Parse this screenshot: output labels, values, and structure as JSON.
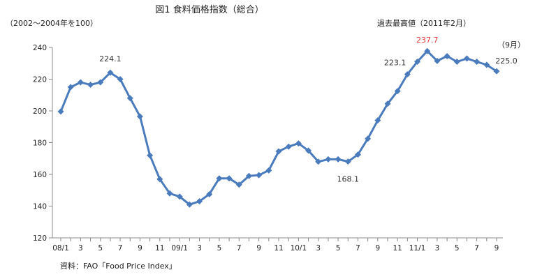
{
  "chart_data": {
    "type": "line",
    "title": "図1  食料価格指数（総合）",
    "unit_label": "（2002～2004年を100）",
    "source": "資料：FAO「Food Price Index」",
    "ylim": [
      120,
      240
    ],
    "yticks": [
      120,
      140,
      160,
      180,
      200,
      220,
      240
    ],
    "x_tick_labels": [
      "08/1",
      "3",
      "5",
      "7",
      "9",
      "11",
      "09/1",
      "3",
      "5",
      "7",
      "9",
      "11",
      "10/1",
      "3",
      "5",
      "7",
      "9",
      "11",
      "11/1",
      "3",
      "5",
      "7",
      "9"
    ],
    "series": [
      {
        "color": "#4a7bbd",
        "values": [
          199.6,
          215.0,
          218.0,
          216.5,
          218.0,
          224.1,
          220.0,
          208.0,
          196.5,
          172.0,
          157.0,
          148.0,
          146.0,
          141.0,
          143.0,
          147.5,
          157.5,
          157.5,
          153.5,
          159.0,
          159.5,
          162.5,
          174.5,
          177.5,
          179.5,
          175.0,
          168.0,
          169.5,
          169.5,
          168.1,
          172.5,
          182.5,
          194.0,
          204.5,
          212.5,
          223.1,
          231.0,
          237.7,
          231.5,
          234.5,
          231.0,
          233.0,
          231.0,
          229.0,
          225.0
        ]
      }
    ],
    "annotations": [
      {
        "index": 5,
        "text": "224.1",
        "style": "label"
      },
      {
        "index": 29,
        "text": "168.1",
        "style": "label"
      },
      {
        "index": 35,
        "text": "223.1",
        "style": "label"
      },
      {
        "index": 37,
        "text": "237.7",
        "style": "peak"
      },
      {
        "index": 44,
        "text": "225.0",
        "style": "label"
      }
    ],
    "notes": {
      "peak_note": "過去最高値（2011年2月）",
      "last_month_note": "（9月）"
    },
    "colors": {
      "line": "#4a7bbd",
      "peak_text": "#e23a3a",
      "axis": "#888888"
    }
  }
}
